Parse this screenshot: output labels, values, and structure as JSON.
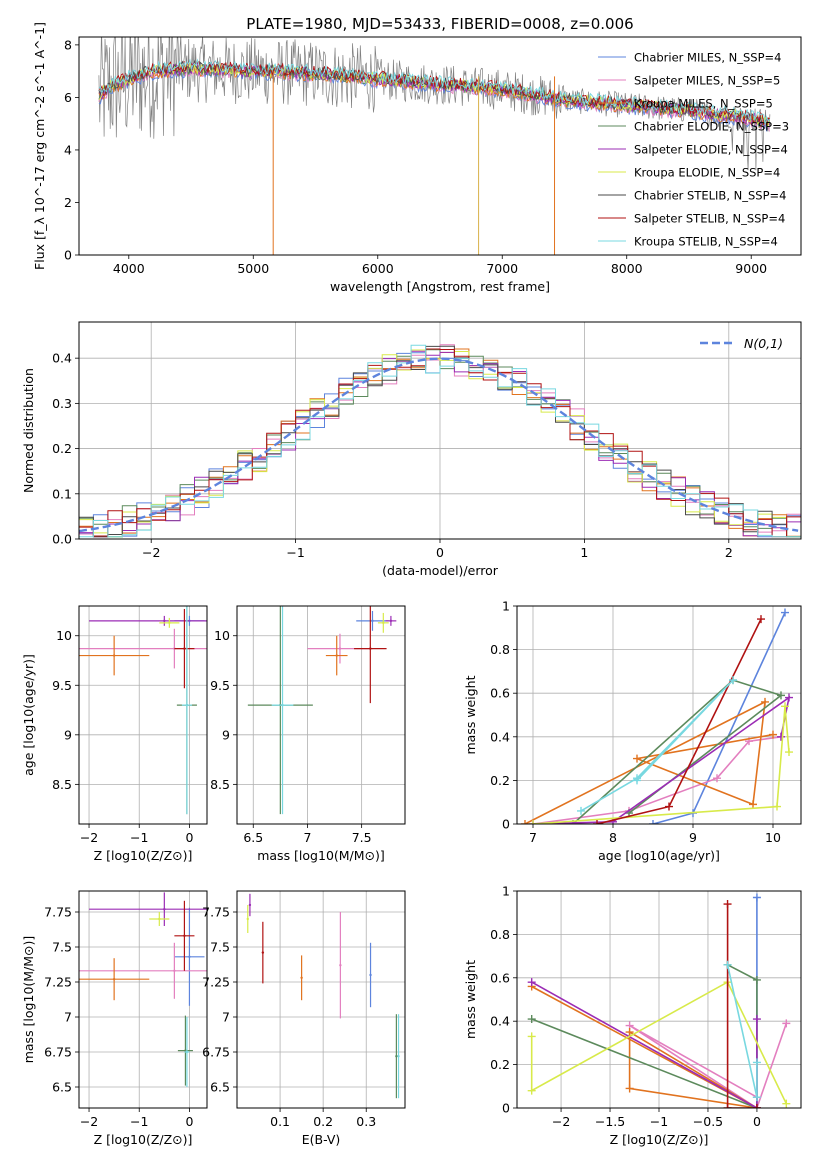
{
  "figure_title": "PLATE=1980, MJD=53433, FIBERID=0008, z=0.006",
  "model_colors": [
    "#5d84dd",
    "#e37fbf",
    "#e1731f",
    "#5c8a5c",
    "#9b2cb5",
    "#d8ea4a",
    "#4a4a4a",
    "#b01212",
    "#78d8e0"
  ],
  "chart_data": [
    {
      "id": "spectrum",
      "type": "line",
      "title": "PLATE=1980, MJD=53433, FIBERID=0008, z=0.006",
      "xlabel": "wavelength [Angstrom, rest frame]",
      "ylabel": "Flux [f_λ 10^-17 erg cm^-2 s^-1 A^-1]",
      "xlim": [
        3600,
        9400
      ],
      "ylim": [
        0,
        8.3
      ],
      "xticks": [
        4000,
        5000,
        6000,
        7000,
        8000,
        9000
      ],
      "yticks": [
        0,
        2,
        4,
        6,
        8
      ],
      "legend": "top-right",
      "data_color": "#808080",
      "series": [
        {
          "name": "Chabrier MILES, N_SSP=4",
          "color": "#5d84dd"
        },
        {
          "name": "Salpeter MILES, N_SSP=5",
          "color": "#e37fbf"
        },
        {
          "name": "Kroupa MILES, N_SSP=5",
          "color": "#e1731f"
        },
        {
          "name": "Chabrier ELODIE, N_SSP=3",
          "color": "#5c8a5c"
        },
        {
          "name": "Salpeter ELODIE, N_SSP=4",
          "color": "#9b2cb5"
        },
        {
          "name": "Kroupa ELODIE, N_SSP=4",
          "color": "#d8ea4a"
        },
        {
          "name": "Chabrier STELIB, N_SSP=4",
          "color": "#4a4a4a"
        },
        {
          "name": "Salpeter STELIB, N_SSP=4",
          "color": "#b01212"
        },
        {
          "name": "Kroupa STELIB, N_SSP=4",
          "color": "#78d8e0"
        }
      ],
      "model_curve": {
        "x": [
          3750,
          3850,
          4000,
          4200,
          4500,
          5000,
          5500,
          6000,
          6500,
          7000,
          7500,
          8000,
          8500,
          9000,
          9150
        ],
        "y": [
          6.0,
          6.4,
          6.7,
          7.0,
          7.1,
          7.0,
          6.9,
          6.7,
          6.5,
          6.3,
          5.9,
          5.7,
          5.5,
          5.2,
          5.0
        ]
      }
    },
    {
      "id": "residuals",
      "type": "area",
      "xlabel": "(data-model)/error",
      "ylabel": "Normed distribution",
      "xlim": [
        -2.5,
        2.5
      ],
      "ylim": [
        0,
        0.48
      ],
      "xticks": [
        -2,
        -1,
        0,
        1,
        2
      ],
      "yticks": [
        0.0,
        0.1,
        0.2,
        0.3,
        0.4
      ],
      "legend": "top-right",
      "reference_label": "N(0,1)",
      "reference_color": "#5d84dd",
      "bin_width": 0.1
    },
    {
      "id": "age-vs-Z",
      "type": "scatter",
      "xlabel": "Z [log10(Z/Z⊙)]",
      "ylabel": "age [log10(age/yr)]",
      "xlim": [
        -2.2,
        0.35
      ],
      "ylim": [
        8.1,
        10.3
      ],
      "xticks": [
        -2,
        -1,
        0
      ],
      "yticks": [
        8.5,
        9.0,
        9.5,
        10.0
      ],
      "points": [
        {
          "color": "#5d84dd",
          "x": 0.0,
          "y": 10.15,
          "xerr": 0.3,
          "yerr": 0.05
        },
        {
          "color": "#e37fbf",
          "x": -0.3,
          "y": 9.87,
          "xerr": 1.9,
          "yerr": 0.2
        },
        {
          "color": "#e1731f",
          "x": -1.5,
          "y": 9.8,
          "xerr": 0.7,
          "yerr": 0.2
        },
        {
          "color": "#9b2cb5",
          "x": -0.5,
          "y": 10.15,
          "xerr": 1.5,
          "yerr": 0.05
        },
        {
          "color": "#d8ea4a",
          "x": -0.4,
          "y": 10.13,
          "xerr": 0.2,
          "yerr": 0.05
        },
        {
          "color": "#b01212",
          "x": -0.1,
          "y": 9.87,
          "xerr": 0.2,
          "yerr": 0.4
        },
        {
          "color": "#5c8a5c",
          "x": -0.05,
          "y": 9.3,
          "xerr": 0.2,
          "yerr": 1.1
        },
        {
          "color": "#78d8e0",
          "x": -0.05,
          "y": 9.3,
          "xerr": 0.1,
          "yerr": 1.1
        }
      ]
    },
    {
      "id": "age-vs-mass",
      "type": "scatter",
      "xlabel": "mass [log10(M/M⊙)]",
      "ylabel": "",
      "xlim": [
        6.35,
        7.9
      ],
      "ylim": [
        8.1,
        10.3
      ],
      "xticks": [
        6.5,
        7.0,
        7.5
      ],
      "yticks": [
        8.5,
        9.0,
        9.5,
        10.0
      ],
      "points": [
        {
          "color": "#5d84dd",
          "x": 7.6,
          "y": 10.15,
          "xerr": 0.15,
          "yerr": 0.1
        },
        {
          "color": "#e37fbf",
          "x": 7.3,
          "y": 9.87,
          "xerr": 0.3,
          "yerr": 0.15
        },
        {
          "color": "#e1731f",
          "x": 7.27,
          "y": 9.8,
          "xerr": 0.1,
          "yerr": 0.2
        },
        {
          "color": "#9b2cb5",
          "x": 7.77,
          "y": 10.15,
          "xerr": 0.05,
          "yerr": 0.05
        },
        {
          "color": "#d8ea4a",
          "x": 7.7,
          "y": 10.13,
          "xerr": 0.05,
          "yerr": 0.1
        },
        {
          "color": "#b01212",
          "x": 7.58,
          "y": 9.87,
          "xerr": 0.15,
          "yerr": 0.55
        },
        {
          "color": "#5c8a5c",
          "x": 6.75,
          "y": 9.3,
          "xerr": 0.3,
          "yerr": 1.1
        },
        {
          "color": "#78d8e0",
          "x": 6.77,
          "y": 9.3,
          "xerr": 0.1,
          "yerr": 1.1
        }
      ]
    },
    {
      "id": "weight-vs-age",
      "type": "line",
      "xlabel": "age [log10(age/yr)]",
      "ylabel": "mass weight",
      "xlim": [
        6.8,
        10.35
      ],
      "ylim": [
        0,
        1.0
      ],
      "xticks": [
        7,
        8,
        9,
        10
      ],
      "yticks": [
        0.0,
        0.2,
        0.4,
        0.6,
        0.8,
        1.0
      ],
      "series": [
        {
          "color": "#5d84dd",
          "x": [
            8.5,
            9.0,
            10.15
          ],
          "y": [
            0.0,
            0.05,
            0.97
          ]
        },
        {
          "color": "#e37fbf",
          "x": [
            7.0,
            8.2,
            9.3,
            9.7,
            10.1
          ],
          "y": [
            0.0,
            0.06,
            0.21,
            0.38,
            0.4
          ]
        },
        {
          "color": "#e1731f",
          "x": [
            6.9,
            9.9,
            9.75,
            8.3,
            10.0
          ],
          "y": [
            0.0,
            0.56,
            0.09,
            0.3,
            0.41
          ]
        },
        {
          "color": "#5c8a5c",
          "x": [
            7.5,
            9.5,
            10.1,
            8.2
          ],
          "y": [
            0.0,
            0.66,
            0.59,
            0.05
          ]
        },
        {
          "color": "#9b2cb5",
          "x": [
            7.0,
            8.0,
            10.2,
            10.1
          ],
          "y": [
            0.0,
            0.01,
            0.58,
            0.4
          ]
        },
        {
          "color": "#d8ea4a",
          "x": [
            7.0,
            10.05,
            10.15,
            10.2
          ],
          "y": [
            0.0,
            0.08,
            0.54,
            0.33
          ]
        },
        {
          "color": "#b01212",
          "x": [
            7.8,
            8.7,
            9.85
          ],
          "y": [
            0.0,
            0.08,
            0.94
          ]
        },
        {
          "color": "#78d8e0",
          "x": [
            7.6,
            8.3,
            9.5,
            8.3
          ],
          "y": [
            0.06,
            0.21,
            0.66,
            0.2
          ]
        }
      ]
    },
    {
      "id": "mass-vs-Z",
      "type": "scatter",
      "xlabel": "Z [log10(Z/Z⊙)]",
      "ylabel": "mass [log10(M/M⊙)]",
      "xlim": [
        -2.2,
        0.35
      ],
      "ylim": [
        6.35,
        7.9
      ],
      "xticks": [
        -2,
        -1,
        0
      ],
      "yticks": [
        6.5,
        6.75,
        7.0,
        7.25,
        7.5,
        7.75
      ],
      "points": [
        {
          "color": "#5d84dd",
          "x": 0.0,
          "y": 7.43,
          "xerr": 0.3,
          "yerr": 0.35
        },
        {
          "color": "#e37fbf",
          "x": -0.3,
          "y": 7.33,
          "xerr": 1.9,
          "yerr": 0.2
        },
        {
          "color": "#e1731f",
          "x": -1.5,
          "y": 7.27,
          "xerr": 0.7,
          "yerr": 0.15
        },
        {
          "color": "#9b2cb5",
          "x": -0.5,
          "y": 7.77,
          "xerr": 1.5,
          "yerr": 0.12
        },
        {
          "color": "#d8ea4a",
          "x": -0.6,
          "y": 7.7,
          "xerr": 0.2,
          "yerr": 0.05
        },
        {
          "color": "#b01212",
          "x": -0.1,
          "y": 7.58,
          "xerr": 0.2,
          "yerr": 0.25
        },
        {
          "color": "#5c8a5c",
          "x": -0.08,
          "y": 6.76,
          "xerr": 0.15,
          "yerr": 0.25
        },
        {
          "color": "#78d8e0",
          "x": -0.05,
          "y": 6.75,
          "xerr": 0.05,
          "yerr": 0.25
        }
      ]
    },
    {
      "id": "mass-vs-EBV",
      "type": "scatter",
      "xlabel": "E(B-V)",
      "ylabel": "",
      "xlim": [
        0.0,
        0.39
      ],
      "ylim": [
        6.35,
        7.9
      ],
      "xticks": [
        0.1,
        0.2,
        0.3
      ],
      "yticks": [
        6.5,
        6.75,
        7.0,
        7.25,
        7.5,
        7.75
      ],
      "points": [
        {
          "color": "#5d84dd",
          "x": 0.31,
          "y": 7.3,
          "xerr": 0.0,
          "yerr": 0.23
        },
        {
          "color": "#e37fbf",
          "x": 0.24,
          "y": 7.37,
          "xerr": 0.0,
          "yerr": 0.38
        },
        {
          "color": "#e1731f",
          "x": 0.15,
          "y": 7.28,
          "xerr": 0.0,
          "yerr": 0.16
        },
        {
          "color": "#9b2cb5",
          "x": 0.03,
          "y": 7.8,
          "xerr": 0.0,
          "yerr": 0.08
        },
        {
          "color": "#d8ea4a",
          "x": 0.025,
          "y": 7.7,
          "xerr": 0.0,
          "yerr": 0.1
        },
        {
          "color": "#b01212",
          "x": 0.06,
          "y": 7.46,
          "xerr": 0.0,
          "yerr": 0.22
        },
        {
          "color": "#5c8a5c",
          "x": 0.37,
          "y": 6.72,
          "xerr": 0.0,
          "yerr": 0.3
        },
        {
          "color": "#78d8e0",
          "x": 0.375,
          "y": 6.72,
          "xerr": 0.0,
          "yerr": 0.3
        }
      ]
    },
    {
      "id": "weight-vs-Z",
      "type": "line",
      "xlabel": "Z [log10(Z/Z⊙)]",
      "ylabel": "mass weight",
      "xlim": [
        -2.45,
        0.45
      ],
      "ylim": [
        0,
        1.0
      ],
      "xticks": [
        -2.0,
        -1.5,
        -1.0,
        -0.5,
        0.0
      ],
      "yticks": [
        0.0,
        0.2,
        0.4,
        0.6,
        0.8,
        1.0
      ],
      "series": [
        {
          "color": "#5d84dd",
          "x": [
            0.0,
            0.0,
            0.0
          ],
          "y": [
            0.0,
            0.97,
            0.05
          ]
        },
        {
          "color": "#e37fbf",
          "x": [
            0.3,
            0.0,
            -1.3,
            0.0
          ],
          "y": [
            0.39,
            0.0,
            0.38,
            0.05
          ]
        },
        {
          "color": "#e1731f",
          "x": [
            -2.3,
            0.0,
            -1.3,
            -1.3,
            0.0
          ],
          "y": [
            0.56,
            0.0,
            0.35,
            0.09,
            0.0
          ]
        },
        {
          "color": "#5c8a5c",
          "x": [
            -2.3,
            0.0,
            0.0,
            -0.3
          ],
          "y": [
            0.41,
            0.0,
            0.59,
            0.66
          ]
        },
        {
          "color": "#9b2cb5",
          "x": [
            -2.3,
            0.0,
            0.0
          ],
          "y": [
            0.58,
            0.0,
            0.41
          ]
        },
        {
          "color": "#d8ea4a",
          "x": [
            -2.3,
            -2.3,
            -0.3,
            0.3
          ],
          "y": [
            0.33,
            0.08,
            0.58,
            0.02
          ]
        },
        {
          "color": "#b01212",
          "x": [
            -0.3,
            -0.3,
            0.0
          ],
          "y": [
            0.94,
            0.0,
            0.0
          ]
        },
        {
          "color": "#78d8e0",
          "x": [
            -0.3,
            0.0,
            0.0
          ],
          "y": [
            0.66,
            0.05,
            0.21
          ]
        }
      ]
    }
  ]
}
